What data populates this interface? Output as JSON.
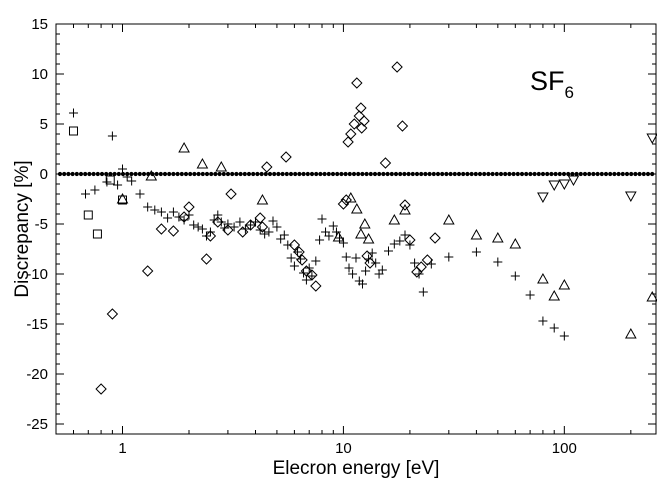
{
  "chart_data": {
    "type": "scatter",
    "title": "",
    "xlabel": "Elecron energy [eV]",
    "ylabel": "Discrepancy [%]",
    "xscale": "log",
    "xlim": [
      0.5,
      260
    ],
    "ylim": [
      -26,
      15
    ],
    "annotation": {
      "main": "SF",
      "sub": "6"
    },
    "x_ticks": [
      {
        "value": 1,
        "label": "1"
      },
      {
        "value": 10,
        "label": "10"
      },
      {
        "value": 100,
        "label": "100"
      }
    ],
    "y_ticks": [
      {
        "value": 15,
        "label": "15"
      },
      {
        "value": 10,
        "label": "10"
      },
      {
        "value": 5,
        "label": "5"
      },
      {
        "value": 0,
        "label": "0"
      },
      {
        "value": -5,
        "label": "-5"
      },
      {
        "value": -10,
        "label": "-10"
      },
      {
        "value": -15,
        "label": "-15"
      },
      {
        "value": -20,
        "label": "-20"
      },
      {
        "value": -25,
        "label": "-25"
      }
    ],
    "reference_line": {
      "y": 0,
      "marker": "dot"
    },
    "series": [
      {
        "marker": "square",
        "points": [
          [
            0.6,
            4.3
          ],
          [
            0.7,
            -4.1
          ],
          [
            0.77,
            -6.0
          ],
          [
            0.88,
            -0.6
          ],
          [
            1.0,
            -2.6
          ]
        ]
      },
      {
        "marker": "plus",
        "points": [
          [
            0.6,
            6.1
          ],
          [
            0.68,
            -2.0
          ],
          [
            0.75,
            -1.6
          ],
          [
            0.85,
            -0.8
          ],
          [
            0.9,
            3.8
          ],
          [
            0.95,
            -1.1
          ],
          [
            1.0,
            0.5
          ],
          [
            1.05,
            -0.3
          ],
          [
            1.1,
            -0.7
          ],
          [
            1.2,
            -2.0
          ],
          [
            1.3,
            -3.3
          ],
          [
            1.4,
            -3.6
          ],
          [
            1.5,
            -3.8
          ],
          [
            1.6,
            -4.4
          ],
          [
            1.7,
            -3.8
          ],
          [
            1.8,
            -4.3
          ],
          [
            1.9,
            -4.6
          ],
          [
            2.0,
            -4.1
          ],
          [
            2.1,
            -5.1
          ],
          [
            2.2,
            -5.3
          ],
          [
            2.3,
            -5.5
          ],
          [
            2.4,
            -6.2
          ],
          [
            2.5,
            -5.8
          ],
          [
            2.6,
            -4.6
          ],
          [
            2.7,
            -4.1
          ],
          [
            2.8,
            -4.8
          ],
          [
            2.9,
            -5.4
          ],
          [
            3.0,
            -5.0
          ],
          [
            3.2,
            -5.3
          ],
          [
            3.4,
            -4.8
          ],
          [
            3.6,
            -5.5
          ],
          [
            3.8,
            -5.1
          ],
          [
            4.0,
            -4.8
          ],
          [
            4.2,
            -5.6
          ],
          [
            4.4,
            -6.0
          ],
          [
            4.6,
            -5.8
          ],
          [
            4.8,
            -4.7
          ],
          [
            5.0,
            -5.3
          ],
          [
            5.2,
            -6.5
          ],
          [
            5.4,
            -6.1
          ],
          [
            5.6,
            -7.1
          ],
          [
            5.8,
            -8.4
          ],
          [
            6.0,
            -9.2
          ],
          [
            6.2,
            -7.8
          ],
          [
            6.4,
            -8.5
          ],
          [
            6.6,
            -9.9
          ],
          [
            6.8,
            -10.6
          ],
          [
            7.0,
            -9.4
          ],
          [
            7.2,
            -10.2
          ],
          [
            7.5,
            -8.7
          ],
          [
            7.8,
            -6.6
          ],
          [
            8.0,
            -4.5
          ],
          [
            8.3,
            -5.8
          ],
          [
            8.6,
            -6.2
          ],
          [
            9.0,
            -5.2
          ],
          [
            9.3,
            -5.8
          ],
          [
            9.6,
            -6.4
          ],
          [
            10.0,
            -6.9
          ],
          [
            10.3,
            -8.3
          ],
          [
            10.6,
            -9.4
          ],
          [
            11.0,
            -10.0
          ],
          [
            11.4,
            -8.4
          ],
          [
            11.8,
            -10.7
          ],
          [
            12.2,
            -11.0
          ],
          [
            12.6,
            -9.7
          ],
          [
            13.0,
            -8.5
          ],
          [
            13.5,
            -7.9
          ],
          [
            14.0,
            -8.9
          ],
          [
            14.5,
            -10.0
          ],
          [
            15.0,
            -9.6
          ],
          [
            16.0,
            -7.7
          ],
          [
            17.0,
            -7.0
          ],
          [
            18.0,
            -6.7
          ],
          [
            19.0,
            -6.1
          ],
          [
            20.0,
            -7.1
          ],
          [
            21.0,
            -8.9
          ],
          [
            22.0,
            -10.0
          ],
          [
            23.0,
            -11.8
          ],
          [
            25.0,
            -9.0
          ],
          [
            30.0,
            -8.3
          ],
          [
            40.0,
            -7.8
          ],
          [
            50.0,
            -8.8
          ],
          [
            60.0,
            -10.2
          ],
          [
            70.0,
            -12.1
          ],
          [
            80.0,
            -14.7
          ],
          [
            90.0,
            -15.4
          ],
          [
            100.0,
            -16.2
          ]
        ]
      },
      {
        "marker": "diamond",
        "points": [
          [
            0.8,
            -21.5
          ],
          [
            0.9,
            -14.0
          ],
          [
            1.3,
            -9.7
          ],
          [
            1.5,
            -5.5
          ],
          [
            1.7,
            -5.7
          ],
          [
            1.9,
            -4.3
          ],
          [
            2.0,
            -3.3
          ],
          [
            2.4,
            -8.5
          ],
          [
            2.5,
            -6.2
          ],
          [
            2.7,
            -4.8
          ],
          [
            3.0,
            -5.6
          ],
          [
            3.1,
            -2.0
          ],
          [
            3.5,
            -5.8
          ],
          [
            3.8,
            -5.1
          ],
          [
            4.2,
            -4.4
          ],
          [
            4.3,
            -5.3
          ],
          [
            4.5,
            0.7
          ],
          [
            5.5,
            1.7
          ],
          [
            6.0,
            -7.1
          ],
          [
            6.3,
            -7.8
          ],
          [
            6.5,
            -8.6
          ],
          [
            6.8,
            -9.7
          ],
          [
            7.2,
            -10.1
          ],
          [
            7.5,
            -11.2
          ],
          [
            10.0,
            -3.0
          ],
          [
            10.3,
            -2.6
          ],
          [
            10.5,
            3.2
          ],
          [
            10.8,
            4.0
          ],
          [
            11.2,
            5.0
          ],
          [
            11.5,
            9.1
          ],
          [
            11.8,
            5.8
          ],
          [
            12.0,
            6.6
          ],
          [
            12.1,
            4.6
          ],
          [
            12.4,
            5.3
          ],
          [
            12.8,
            -8.2
          ],
          [
            13.2,
            -8.9
          ],
          [
            15.5,
            1.1
          ],
          [
            17.5,
            10.7
          ],
          [
            18.5,
            4.8
          ],
          [
            19.0,
            -3.1
          ],
          [
            20.0,
            -6.6
          ],
          [
            21.5,
            -9.8
          ],
          [
            22.5,
            -9.3
          ],
          [
            24.0,
            -8.6
          ],
          [
            26.0,
            -6.4
          ]
        ]
      },
      {
        "marker": "triangle-up",
        "points": [
          [
            1.0,
            -2.5
          ],
          [
            1.35,
            -0.2
          ],
          [
            1.9,
            2.6
          ],
          [
            2.3,
            1.0
          ],
          [
            2.8,
            0.7
          ],
          [
            4.3,
            -2.6
          ],
          [
            9.5,
            -6.3
          ],
          [
            10.8,
            -2.4
          ],
          [
            11.5,
            -3.5
          ],
          [
            12.0,
            -6.0
          ],
          [
            12.5,
            -5.0
          ],
          [
            13.0,
            -6.5
          ],
          [
            17.0,
            -4.6
          ],
          [
            19.0,
            -3.6
          ],
          [
            30.0,
            -4.6
          ],
          [
            40.0,
            -6.1
          ],
          [
            50.0,
            -6.4
          ],
          [
            60.0,
            -7.0
          ],
          [
            80.0,
            -10.5
          ],
          [
            90.0,
            -12.2
          ],
          [
            100.0,
            -11.1
          ],
          [
            200.0,
            -16.0
          ],
          [
            250.0,
            -12.3
          ]
        ]
      },
      {
        "marker": "triangle-down",
        "points": [
          [
            80.0,
            -2.3
          ],
          [
            90.0,
            -1.1
          ],
          [
            100.0,
            -1.0
          ],
          [
            110.0,
            -0.6
          ],
          [
            200.0,
            -2.2
          ],
          [
            250.0,
            3.6
          ]
        ]
      }
    ]
  }
}
